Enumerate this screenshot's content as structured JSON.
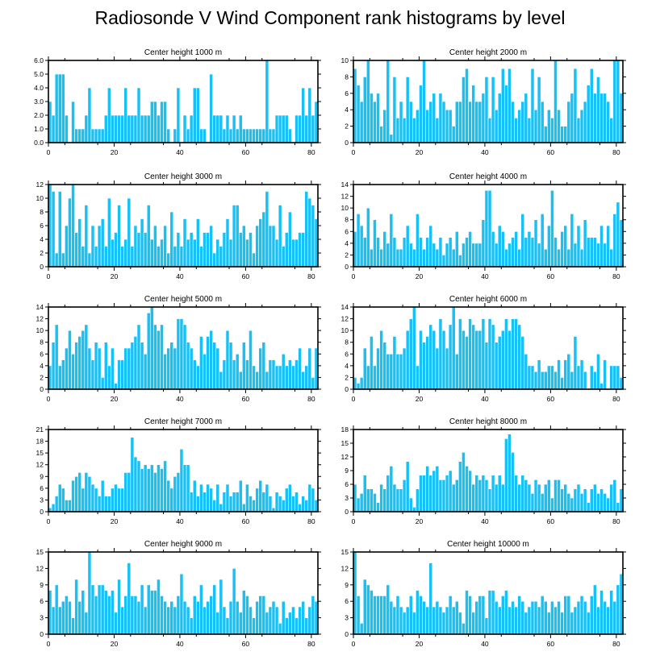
{
  "title": "Radiosonde V Wind Component rank histograms by level",
  "colors": {
    "bar": "#17c0f5",
    "axis": "#000000",
    "background": "#ffffff"
  },
  "chart_data": [
    {
      "type": "bar",
      "title": "Center height 1000 m",
      "xlim": [
        0,
        82
      ],
      "ylim": [
        0,
        6
      ],
      "xticks": [
        0,
        20,
        40,
        60,
        80
      ],
      "yticks": [
        "0.0",
        "1.0",
        "2.0",
        "3.0",
        "4.0",
        "5.0",
        "6.0"
      ],
      "values": [
        3,
        2,
        5,
        5,
        5,
        2,
        0,
        3,
        1,
        1,
        1,
        2,
        4,
        1,
        1,
        1,
        1,
        2,
        4,
        2,
        2,
        2,
        2,
        4,
        2,
        2,
        2,
        4,
        2,
        2,
        2,
        3,
        3,
        2,
        3,
        3,
        1,
        0,
        1,
        4,
        0,
        2,
        1,
        2,
        4,
        4,
        1,
        1,
        0,
        5,
        2,
        2,
        2,
        1,
        2,
        1,
        2,
        1,
        2,
        1,
        1,
        1,
        1,
        1,
        1,
        1,
        6,
        1,
        1,
        2,
        2,
        2,
        2,
        1,
        0,
        2,
        2,
        4,
        2,
        4,
        2,
        3
      ]
    },
    {
      "type": "bar",
      "title": "Center height 2000 m",
      "xlim": [
        0,
        82
      ],
      "ylim": [
        0,
        10
      ],
      "xticks": [
        0,
        20,
        40,
        60,
        80
      ],
      "yticks": [
        "0",
        "2",
        "4",
        "6",
        "8",
        "10"
      ],
      "values": [
        9,
        7,
        5,
        8,
        10,
        6,
        5,
        6,
        2,
        4,
        10,
        1,
        8,
        3,
        5,
        3,
        8,
        5,
        3,
        4,
        7,
        10,
        4,
        5,
        6,
        3,
        6,
        5,
        4,
        4,
        2,
        5,
        5,
        8,
        9,
        5,
        7,
        5,
        5,
        6,
        8,
        3,
        8,
        4,
        6,
        9,
        7,
        9,
        5,
        3,
        4,
        5,
        6,
        3,
        9,
        4,
        8,
        5,
        2,
        4,
        3,
        10,
        4,
        2,
        2,
        5,
        6,
        9,
        3,
        4,
        5,
        7,
        9,
        6,
        8,
        6,
        6,
        5,
        3,
        10,
        10,
        6
      ]
    },
    {
      "type": "bar",
      "title": "Center height 3000 m",
      "xlim": [
        0,
        82
      ],
      "ylim": [
        0,
        12
      ],
      "xticks": [
        0,
        20,
        40,
        60,
        80
      ],
      "yticks": [
        "0",
        "2",
        "4",
        "6",
        "8",
        "10",
        "12"
      ],
      "values": [
        12,
        11,
        2,
        11,
        2,
        6,
        10,
        12,
        5,
        7,
        3,
        9,
        2,
        6,
        3,
        6,
        7,
        3,
        10,
        4,
        5,
        9,
        3,
        4,
        10,
        3,
        6,
        5,
        7,
        5,
        9,
        4,
        6,
        3,
        4,
        6,
        2,
        8,
        3,
        5,
        3,
        7,
        4,
        5,
        4,
        7,
        3,
        5,
        5,
        6,
        2,
        4,
        3,
        5,
        7,
        4,
        9,
        9,
        5,
        6,
        4,
        5,
        2,
        6,
        7,
        8,
        11,
        6,
        6,
        4,
        9,
        3,
        5,
        8,
        4,
        4,
        5,
        5,
        11,
        10,
        9,
        7
      ]
    },
    {
      "type": "bar",
      "title": "Center height 4000 m",
      "xlim": [
        0,
        82
      ],
      "ylim": [
        0,
        14
      ],
      "xticks": [
        0,
        20,
        40,
        60,
        80
      ],
      "yticks": [
        "0",
        "2",
        "4",
        "6",
        "8",
        "10",
        "12",
        "14"
      ],
      "values": [
        6,
        9,
        7,
        5,
        10,
        3,
        8,
        5,
        3,
        6,
        4,
        9,
        5,
        3,
        3,
        5,
        7,
        4,
        3,
        9,
        5,
        3,
        5,
        7,
        4,
        3,
        5,
        2,
        4,
        5,
        3,
        6,
        2,
        4,
        5,
        6,
        4,
        4,
        4,
        8,
        13,
        13,
        6,
        4,
        7,
        6,
        3,
        4,
        5,
        6,
        3,
        9,
        5,
        6,
        5,
        8,
        4,
        9,
        3,
        7,
        13,
        5,
        3,
        6,
        7,
        3,
        9,
        4,
        7,
        3,
        8,
        5,
        5,
        5,
        4,
        7,
        4,
        7,
        3,
        9,
        11,
        8
      ]
    },
    {
      "type": "bar",
      "title": "Center height 5000 m",
      "xlim": [
        0,
        82
      ],
      "ylim": [
        0,
        14
      ],
      "xticks": [
        0,
        20,
        40,
        60,
        80
      ],
      "yticks": [
        "0",
        "2",
        "4",
        "6",
        "8",
        "10",
        "12",
        "14"
      ],
      "values": [
        4,
        8,
        11,
        4,
        5,
        7,
        10,
        6,
        8,
        9,
        10,
        11,
        7,
        5,
        8,
        7,
        2,
        8,
        4,
        7,
        1,
        5,
        5,
        7,
        7,
        8,
        9,
        11,
        8,
        6,
        13,
        14,
        11,
        10,
        11,
        6,
        7,
        8,
        7,
        12,
        12,
        11,
        8,
        7,
        5,
        4,
        9,
        6,
        9,
        10,
        8,
        7,
        3,
        5,
        10,
        8,
        5,
        6,
        3,
        8,
        5,
        10,
        4,
        3,
        7,
        8,
        3,
        5,
        5,
        4,
        4,
        6,
        4,
        5,
        4,
        5,
        7,
        3,
        4,
        7,
        2,
        7
      ]
    },
    {
      "type": "bar",
      "title": "Center height 6000 m",
      "xlim": [
        0,
        82
      ],
      "ylim": [
        0,
        14
      ],
      "xticks": [
        0,
        20,
        40,
        60,
        80
      ],
      "yticks": [
        "0",
        "2",
        "4",
        "6",
        "8",
        "10",
        "12",
        "14"
      ],
      "values": [
        2,
        1,
        2,
        7,
        4,
        9,
        4,
        7,
        10,
        8,
        6,
        6,
        9,
        6,
        6,
        7,
        10,
        12,
        14,
        4,
        10,
        8,
        9,
        11,
        10,
        7,
        12,
        10,
        7,
        11,
        14,
        6,
        12,
        10,
        9,
        12,
        11,
        10,
        10,
        12,
        8,
        12,
        11,
        8,
        9,
        10,
        12,
        10,
        12,
        12,
        11,
        9,
        6,
        4,
        4,
        3,
        5,
        3,
        3,
        4,
        4,
        3,
        5,
        2,
        5,
        6,
        3,
        9,
        4,
        5,
        3,
        0,
        4,
        3,
        6,
        1,
        5,
        0,
        4,
        4,
        4,
        2
      ]
    },
    {
      "type": "bar",
      "title": "Center height 7000 m",
      "xlim": [
        0,
        82
      ],
      "ylim": [
        0,
        21
      ],
      "xticks": [
        0,
        20,
        40,
        60,
        80
      ],
      "yticks": [
        "0",
        "3",
        "6",
        "9",
        "12",
        "15",
        "18",
        "21"
      ],
      "values": [
        1,
        2,
        4,
        7,
        6,
        3,
        3,
        8,
        9,
        10,
        6,
        10,
        9,
        7,
        6,
        4,
        8,
        4,
        4,
        6,
        7,
        6,
        6,
        10,
        10,
        19,
        14,
        13,
        11,
        12,
        11,
        12,
        10,
        12,
        11,
        13,
        8,
        6,
        9,
        10,
        16,
        12,
        12,
        5,
        8,
        4,
        7,
        5,
        7,
        6,
        3,
        7,
        2,
        5,
        7,
        4,
        5,
        5,
        8,
        2,
        7,
        4,
        3,
        6,
        8,
        5,
        7,
        4,
        1,
        5,
        4,
        3,
        6,
        7,
        4,
        5,
        2,
        4,
        3,
        7,
        6,
        3
      ]
    },
    {
      "type": "bar",
      "title": "Center height 8000 m",
      "xlim": [
        0,
        82
      ],
      "ylim": [
        0,
        18
      ],
      "xticks": [
        0,
        20,
        40,
        60,
        80
      ],
      "yticks": [
        "0",
        "3",
        "6",
        "9",
        "12",
        "15",
        "18"
      ],
      "values": [
        6,
        3,
        4,
        8,
        5,
        5,
        4,
        2,
        6,
        5,
        8,
        10,
        6,
        5,
        5,
        7,
        11,
        3,
        1,
        5,
        8,
        8,
        10,
        8,
        9,
        10,
        7,
        7,
        8,
        9,
        6,
        7,
        11,
        13,
        10,
        9,
        6,
        8,
        7,
        8,
        7,
        5,
        8,
        6,
        8,
        6,
        16,
        17,
        13,
        8,
        6,
        8,
        7,
        6,
        4,
        7,
        6,
        4,
        6,
        7,
        3,
        7,
        7,
        5,
        6,
        4,
        3,
        5,
        6,
        4,
        5,
        2,
        5,
        6,
        4,
        5,
        4,
        3,
        6,
        7,
        2,
        5
      ]
    },
    {
      "type": "bar",
      "title": "Center height 9000 m",
      "xlim": [
        0,
        82
      ],
      "ylim": [
        0,
        15
      ],
      "xticks": [
        0,
        20,
        40,
        60,
        80
      ],
      "yticks": [
        "0",
        "3",
        "6",
        "9",
        "12",
        "15"
      ],
      "values": [
        8,
        5,
        9,
        5,
        6,
        7,
        6,
        3,
        10,
        6,
        8,
        4,
        15,
        9,
        7,
        9,
        9,
        8,
        7,
        8,
        4,
        10,
        5,
        7,
        13,
        7,
        7,
        6,
        9,
        5,
        9,
        8,
        8,
        10,
        7,
        6,
        5,
        6,
        5,
        7,
        11,
        6,
        5,
        3,
        7,
        6,
        9,
        5,
        6,
        7,
        9,
        4,
        10,
        5,
        3,
        6,
        12,
        6,
        4,
        8,
        7,
        5,
        3,
        6,
        7,
        7,
        4,
        5,
        6,
        5,
        2,
        6,
        3,
        4,
        5,
        3,
        5,
        6,
        3,
        5,
        7,
        6
      ]
    },
    {
      "type": "bar",
      "title": "Center height 10000 m",
      "xlim": [
        0,
        82
      ],
      "ylim": [
        0,
        15
      ],
      "xticks": [
        0,
        20,
        40,
        60,
        80
      ],
      "yticks": [
        "0",
        "3",
        "6",
        "9",
        "12",
        "15"
      ],
      "values": [
        15,
        7,
        2,
        10,
        9,
        8,
        7,
        7,
        7,
        7,
        9,
        6,
        5,
        7,
        5,
        4,
        5,
        7,
        4,
        8,
        7,
        6,
        5,
        13,
        5,
        6,
        5,
        4,
        5,
        7,
        5,
        6,
        4,
        2,
        8,
        7,
        4,
        6,
        7,
        7,
        3,
        8,
        8,
        6,
        5,
        7,
        8,
        5,
        6,
        5,
        7,
        6,
        4,
        5,
        6,
        6,
        5,
        7,
        6,
        4,
        6,
        5,
        6,
        4,
        7,
        7,
        4,
        5,
        6,
        7,
        6,
        4,
        7,
        9,
        5,
        8,
        6,
        5,
        8,
        6,
        9,
        11
      ]
    }
  ]
}
